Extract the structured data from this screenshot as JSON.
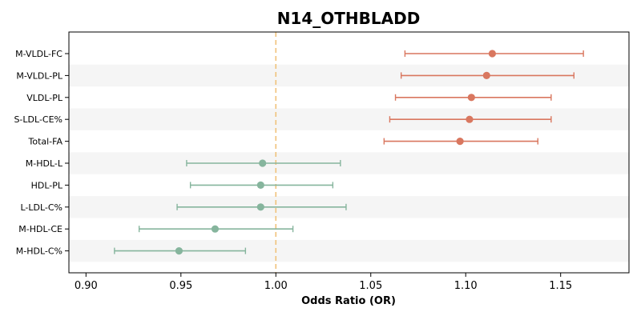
{
  "chart_data": {
    "type": "scatter",
    "title": "N14_OTHBLADD",
    "xlabel": "Odds Ratio (OR)",
    "ylabel": "",
    "xlim": [
      0.891,
      1.186
    ],
    "xticks": [
      "0.90",
      "0.95",
      "1.00",
      "1.05",
      "1.10",
      "1.15"
    ],
    "xtick_values": [
      0.9,
      0.95,
      1.0,
      1.05,
      1.1,
      1.15
    ],
    "reference_line": 1.0,
    "grid": false,
    "row_shading": "alternating",
    "colors": {
      "positive": "#d9775f",
      "negative": "#86b59d",
      "reference": "#f0c27a",
      "shade": "#f5f5f5"
    },
    "points": [
      {
        "label": "M-VLDL-FC",
        "or": 1.114,
        "low": 1.068,
        "high": 1.162,
        "group": "positive"
      },
      {
        "label": "M-VLDL-PL",
        "or": 1.111,
        "low": 1.066,
        "high": 1.157,
        "group": "positive"
      },
      {
        "label": "VLDL-PL",
        "or": 1.103,
        "low": 1.063,
        "high": 1.145,
        "group": "positive"
      },
      {
        "label": "S-LDL-CE%",
        "or": 1.102,
        "low": 1.06,
        "high": 1.145,
        "group": "positive"
      },
      {
        "label": "Total-FA",
        "or": 1.097,
        "low": 1.057,
        "high": 1.138,
        "group": "positive"
      },
      {
        "label": "M-HDL-L",
        "or": 0.993,
        "low": 0.953,
        "high": 1.034,
        "group": "negative"
      },
      {
        "label": "HDL-PL",
        "or": 0.992,
        "low": 0.955,
        "high": 1.03,
        "group": "negative"
      },
      {
        "label": "L-LDL-C%",
        "or": 0.992,
        "low": 0.948,
        "high": 1.037,
        "group": "negative"
      },
      {
        "label": "M-HDL-CE",
        "or": 0.968,
        "low": 0.928,
        "high": 1.009,
        "group": "negative"
      },
      {
        "label": "M-HDL-C%",
        "or": 0.949,
        "low": 0.915,
        "high": 0.984,
        "group": "negative"
      }
    ]
  }
}
